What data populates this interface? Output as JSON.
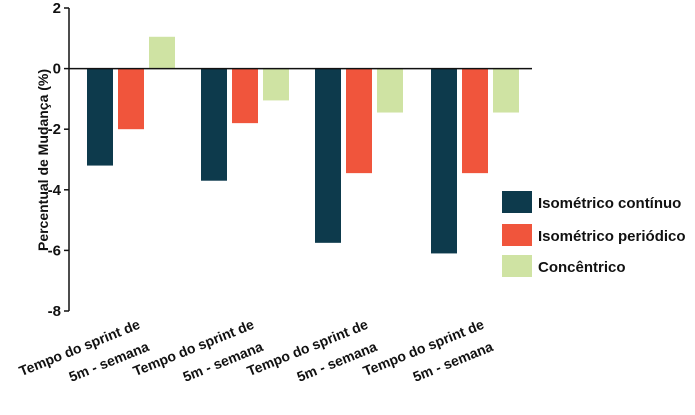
{
  "chart_data": {
    "type": "bar",
    "ylabel": "Percentual de Mudança (%)",
    "ylim": [
      -8,
      2
    ],
    "yticks": [
      2,
      0,
      -2,
      -4,
      -6,
      -8
    ],
    "categories": [
      [
        "Tempo do sprint de",
        "5m - semana"
      ],
      [
        "Tempo do sprint de",
        "5m - semana"
      ],
      [
        "Tempo do sprint de",
        "5m - semana"
      ],
      [
        "Tempo do sprint de",
        "5m - semana"
      ]
    ],
    "series": [
      {
        "name": "Isométrico contínuo",
        "color": "#0d3a4c",
        "values": [
          -3.2,
          -3.7,
          -5.75,
          -6.1
        ]
      },
      {
        "name": "Isométrico periódico",
        "color": "#f0553c",
        "values": [
          -2.0,
          -1.8,
          -3.45,
          -3.45
        ]
      },
      {
        "name": "Concêntrico",
        "color": "#cfe3a3",
        "values": [
          1.05,
          -1.05,
          -1.45,
          -1.45
        ]
      }
    ],
    "legend_position": "right",
    "grid": false
  }
}
